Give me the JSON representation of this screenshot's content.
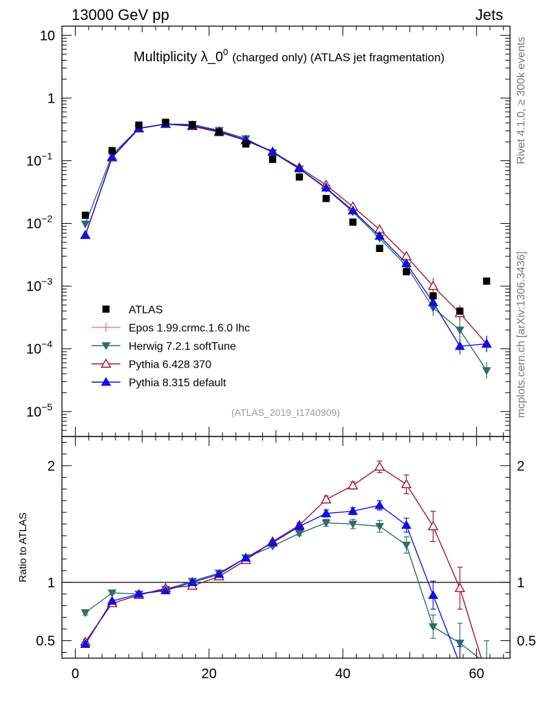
{
  "header": {
    "energy_label": "13000 GeV pp",
    "process_label": "Jets",
    "side_rivet": "Rivet 4.1.0, ≥ 300k events",
    "side_mcplots": "mcplots.cern.ch [arXiv:1306.3436]"
  },
  "chart_data": {
    "type": "scatter",
    "title_main": "Multiplicity λ_0",
    "title_sup": "0",
    "title_tail": "(charged only) (ATLAS jet fragmentation)",
    "watermark": "(ATLAS_2019_I1740909)",
    "xlim": [
      -2,
      65
    ],
    "main_ylim": [
      4e-06,
      14
    ],
    "main_yscale": "log",
    "main_yticks": [
      {
        "value": 10,
        "label": "10",
        "sup": ""
      },
      {
        "value": 1,
        "label": "1",
        "sup": ""
      },
      {
        "value": 0.1,
        "label": "10",
        "sup": "−1"
      },
      {
        "value": 0.01,
        "label": "10",
        "sup": "−2"
      },
      {
        "value": 0.001,
        "label": "10",
        "sup": "−3"
      },
      {
        "value": 0.0001,
        "label": "10",
        "sup": "−4"
      },
      {
        "value": 1e-05,
        "label": "10",
        "sup": "−5"
      }
    ],
    "ratio_ylabel": "Ratio to ATLAS",
    "ratio_ylim": [
      0.35,
      2.25
    ],
    "ratio_yticks": [
      {
        "value": 0.5,
        "label": "0.5"
      },
      {
        "value": 1,
        "label": "1"
      },
      {
        "value": 2,
        "label": "2"
      }
    ],
    "xticks": [
      {
        "value": 0,
        "label": "0"
      },
      {
        "value": 20,
        "label": "20"
      },
      {
        "value": 40,
        "label": "40"
      },
      {
        "value": 60,
        "label": "60"
      }
    ],
    "x": [
      1.5,
      5.5,
      9.5,
      13.5,
      17.5,
      21.5,
      25.5,
      29.5,
      33.5,
      37.5,
      41.5,
      45.5,
      49.5,
      53.5,
      57.5,
      61.5
    ],
    "data": {
      "name": "ATLAS",
      "color": "#000000",
      "values": [
        0.0135,
        0.145,
        0.37,
        0.41,
        0.375,
        0.285,
        0.185,
        0.105,
        0.055,
        0.025,
        0.0105,
        0.004,
        0.0017,
        0.0007,
        0.0004,
        0.0012
      ]
    },
    "series": [
      {
        "name": "Epos 1.99.crmc.1.6.0 lhc",
        "color": "#f08080",
        "marker": "cross",
        "values": [],
        "ratio": [],
        "ratio_err": []
      },
      {
        "name": "Herwig 7.2.1 softTune",
        "color": "#2f6b6b",
        "marker": "triangle-down",
        "values": [
          0.0098,
          0.125,
          0.33,
          0.385,
          0.38,
          0.305,
          0.225,
          0.135,
          0.074,
          0.036,
          0.0153,
          0.0058,
          0.0021,
          0.00045,
          0.0002,
          4.5e-05
        ],
        "ratio": [
          0.74,
          0.91,
          0.9,
          0.94,
          1.01,
          1.08,
          1.21,
          1.31,
          1.42,
          1.51,
          1.5,
          1.48,
          1.32,
          0.62,
          0.48,
          0.3
        ],
        "ratio_err": [
          0.02,
          0.01,
          0.01,
          0.01,
          0.01,
          0.01,
          0.01,
          0.01,
          0.02,
          0.03,
          0.04,
          0.05,
          0.07,
          0.1,
          0.17,
          0.2
        ]
      },
      {
        "name": "Pythia 6.428 370",
        "color": "#a01030",
        "marker": "triangle-up-open",
        "values": [
          0.0065,
          0.112,
          0.325,
          0.385,
          0.355,
          0.285,
          0.21,
          0.138,
          0.078,
          0.041,
          0.0185,
          0.008,
          0.003,
          0.001,
          0.00037,
          0.00012
        ],
        "ratio": [
          0.49,
          0.82,
          0.89,
          0.95,
          0.97,
          1.05,
          1.19,
          1.35,
          1.49,
          1.71,
          1.83,
          1.99,
          1.84,
          1.48,
          0.95,
          0.2
        ],
        "ratio_err": [
          0.02,
          0.01,
          0.01,
          0.01,
          0.01,
          0.01,
          0.01,
          0.01,
          0.02,
          0.03,
          0.03,
          0.05,
          0.08,
          0.13,
          0.18,
          0.1
        ]
      },
      {
        "name": "Pythia 8.315 default",
        "color": "#1010e0",
        "marker": "triangle-up",
        "values": [
          0.0065,
          0.115,
          0.33,
          0.385,
          0.365,
          0.295,
          0.215,
          0.14,
          0.075,
          0.037,
          0.016,
          0.0063,
          0.0023,
          0.00055,
          0.00011,
          0.00012
        ],
        "ratio": [
          0.47,
          0.84,
          0.9,
          0.93,
          1.0,
          1.07,
          1.21,
          1.34,
          1.48,
          1.59,
          1.61,
          1.66,
          1.49,
          0.89,
          0.3,
          0.2
        ],
        "ratio_err": [
          0.02,
          0.01,
          0.01,
          0.01,
          0.01,
          0.01,
          0.01,
          0.01,
          0.02,
          0.03,
          0.03,
          0.04,
          0.06,
          0.12,
          0.15,
          0.1
        ]
      }
    ]
  }
}
